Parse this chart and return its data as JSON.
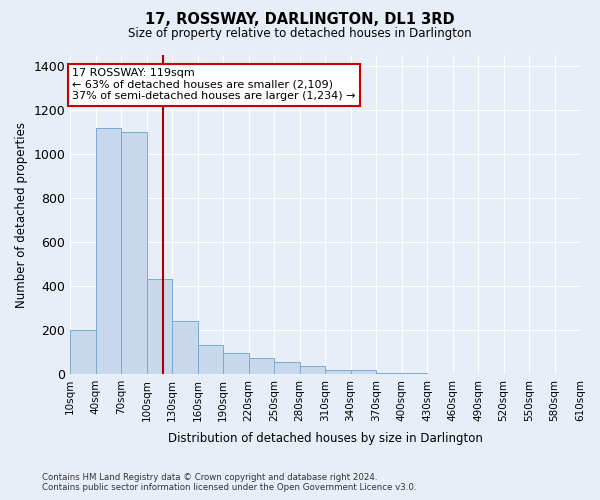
{
  "title": "17, ROSSWAY, DARLINGTON, DL1 3RD",
  "subtitle": "Size of property relative to detached houses in Darlington",
  "xlabel": "Distribution of detached houses by size in Darlington",
  "ylabel": "Number of detached properties",
  "footer_line1": "Contains HM Land Registry data © Crown copyright and database right 2024.",
  "footer_line2": "Contains public sector information licensed under the Open Government Licence v3.0.",
  "property_size": 119,
  "annotation_text": "17 ROSSWAY: 119sqm\n← 63% of detached houses are smaller (2,109)\n37% of semi-detached houses are larger (1,234) →",
  "bar_color": "#c8d9ee",
  "bar_edge_color": "#7aabcf",
  "annotation_box_color": "#ffffff",
  "annotation_box_edge": "#cc0000",
  "vline_color": "#aa0000",
  "background_color": "#e8eef8",
  "plot_bg_color": "#e8eef8",
  "ylim": [
    0,
    1450
  ],
  "yticks": [
    0,
    200,
    400,
    600,
    800,
    1000,
    1200,
    1400
  ],
  "bins": [
    10,
    40,
    70,
    100,
    130,
    160,
    190,
    220,
    250,
    280,
    310,
    340,
    370,
    400,
    430,
    460,
    490,
    520,
    550,
    580,
    610
  ],
  "counts": [
    200,
    1120,
    1100,
    430,
    240,
    130,
    95,
    75,
    55,
    35,
    20,
    20,
    5,
    5,
    0,
    0,
    0,
    0,
    0,
    0
  ]
}
